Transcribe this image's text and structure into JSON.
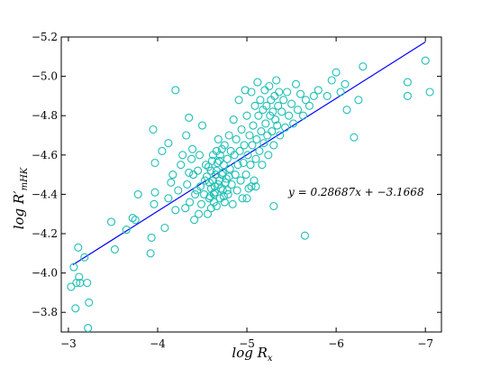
{
  "chart_data": {
    "type": "scatter",
    "title": "",
    "xlabel": "log R_x",
    "ylabel": "log R'_mHK",
    "xlim": [
      -2.92,
      -7.18
    ],
    "ylim": [
      -3.7,
      -5.2
    ],
    "x_ticks": [
      "−3",
      "−4",
      "−5",
      "−6",
      "−7"
    ],
    "y_ticks": [
      "−3.8",
      "−4.0",
      "−4.2",
      "−4.4",
      "−4.6",
      "−4.8",
      "−5.0",
      "−5.2"
    ],
    "x_tick_values": [
      -3,
      -4,
      -5,
      -6,
      -7
    ],
    "y_tick_values": [
      -3.8,
      -4.0,
      -4.2,
      -4.4,
      -4.6,
      -4.8,
      -5.0,
      -5.2
    ],
    "marker_color": "#1fbfb5",
    "fit_color": "#0000ff",
    "fit": {
      "slope": 0.28687,
      "intercept": -3.1668,
      "x_range": [
        -3.05,
        -7.0
      ]
    },
    "annotation": "y = 0.28687x + −3.1668",
    "series": [
      {
        "values": [
          [
            -3.03,
            -3.93
          ],
          [
            -3.09,
            -3.95
          ],
          [
            -3.13,
            -3.95
          ],
          [
            -3.21,
            -3.95
          ],
          [
            -3.06,
            -4.03
          ],
          [
            -3.12,
            -3.98
          ],
          [
            -3.18,
            -4.08
          ],
          [
            -3.11,
            -4.13
          ],
          [
            -3.23,
            -3.85
          ],
          [
            -3.08,
            -3.82
          ],
          [
            -3.22,
            -3.72
          ],
          [
            -3.48,
            -4.26
          ],
          [
            -3.52,
            -4.12
          ],
          [
            -3.65,
            -4.22
          ],
          [
            -3.72,
            -4.28
          ],
          [
            -3.75,
            -4.27
          ],
          [
            -3.78,
            -4.4
          ],
          [
            -3.92,
            -4.1
          ],
          [
            -3.93,
            -4.18
          ],
          [
            -3.96,
            -4.35
          ],
          [
            -3.97,
            -4.41
          ],
          [
            -3.97,
            -4.56
          ],
          [
            -3.95,
            -4.73
          ],
          [
            -4.05,
            -4.62
          ],
          [
            -4.08,
            -4.23
          ],
          [
            -4.12,
            -4.38
          ],
          [
            -4.12,
            -4.66
          ],
          [
            -4.15,
            -4.46
          ],
          [
            -4.17,
            -4.5
          ],
          [
            -4.2,
            -4.32
          ],
          [
            -4.2,
            -4.93
          ],
          [
            -4.23,
            -4.42
          ],
          [
            -4.26,
            -4.55
          ],
          [
            -4.28,
            -4.6
          ],
          [
            -4.32,
            -4.7
          ],
          [
            -4.35,
            -4.79
          ],
          [
            -4.36,
            -4.36
          ],
          [
            -4.38,
            -4.58
          ],
          [
            -4.4,
            -4.5
          ],
          [
            -4.42,
            -4.4
          ],
          [
            -4.45,
            -4.52
          ],
          [
            -4.46,
            -4.3
          ],
          [
            -4.48,
            -4.44
          ],
          [
            -4.31,
            -4.33
          ],
          [
            -4.33,
            -4.45
          ],
          [
            -4.35,
            -4.51
          ],
          [
            -4.39,
            -4.63
          ],
          [
            -4.41,
            -4.27
          ],
          [
            -4.44,
            -4.42
          ],
          [
            -4.47,
            -4.6
          ],
          [
            -4.49,
            -4.35
          ],
          [
            -4.5,
            -4.75
          ],
          [
            -4.52,
            -4.4
          ],
          [
            -4.53,
            -4.47
          ],
          [
            -4.54,
            -4.55
          ],
          [
            -4.56,
            -4.3
          ],
          [
            -4.58,
            -4.38
          ],
          [
            -4.58,
            -4.46
          ],
          [
            -4.6,
            -4.52
          ],
          [
            -4.6,
            -4.33
          ],
          [
            -4.62,
            -4.6
          ],
          [
            -4.63,
            -4.4
          ],
          [
            -4.64,
            -4.44
          ],
          [
            -4.65,
            -4.5
          ],
          [
            -4.66,
            -4.34
          ],
          [
            -4.67,
            -4.56
          ],
          [
            -4.68,
            -4.45
          ],
          [
            -4.68,
            -4.68
          ],
          [
            -4.7,
            -4.38
          ],
          [
            -4.7,
            -4.6
          ],
          [
            -4.72,
            -4.5
          ],
          [
            -4.73,
            -4.42
          ],
          [
            -4.74,
            -4.55
          ],
          [
            -4.75,
            -4.65
          ],
          [
            -4.75,
            -4.36
          ],
          [
            -4.77,
            -4.48
          ],
          [
            -4.78,
            -4.58
          ],
          [
            -4.79,
            -4.4
          ],
          [
            -4.8,
            -4.7
          ],
          [
            -4.81,
            -4.53
          ],
          [
            -4.82,
            -4.62
          ],
          [
            -4.83,
            -4.45
          ],
          [
            -4.84,
            -4.35
          ],
          [
            -4.85,
            -4.78
          ],
          [
            -4.86,
            -4.6
          ],
          [
            -4.87,
            -4.5
          ],
          [
            -4.88,
            -4.68
          ],
          [
            -4.89,
            -4.42
          ],
          [
            -4.9,
            -4.55
          ],
          [
            -4.91,
            -4.88
          ],
          [
            -4.92,
            -4.62
          ],
          [
            -4.93,
            -4.47
          ],
          [
            -4.94,
            -4.73
          ],
          [
            -4.95,
            -4.38
          ],
          [
            -4.96,
            -4.56
          ],
          [
            -4.97,
            -4.65
          ],
          [
            -4.98,
            -4.93
          ],
          [
            -4.99,
            -4.5
          ],
          [
            -5.0,
            -4.8
          ],
          [
            -5.01,
            -4.6
          ],
          [
            -5.02,
            -4.43
          ],
          [
            -5.03,
            -4.7
          ],
          [
            -5.04,
            -4.55
          ],
          [
            -5.05,
            -4.92
          ],
          [
            -5.06,
            -4.65
          ],
          [
            -5.07,
            -4.75
          ],
          [
            -5.08,
            -4.47
          ],
          [
            -5.09,
            -4.85
          ],
          [
            -5.1,
            -4.58
          ],
          [
            -5.11,
            -4.68
          ],
          [
            -5.12,
            -4.97
          ],
          [
            -5.13,
            -4.8
          ],
          [
            -5.14,
            -4.62
          ],
          [
            -5.15,
            -4.88
          ],
          [
            -5.16,
            -4.72
          ],
          [
            -5.17,
            -4.55
          ],
          [
            -5.18,
            -4.83
          ],
          [
            -5.19,
            -4.66
          ],
          [
            -5.2,
            -4.93
          ],
          [
            -5.21,
            -4.76
          ],
          [
            -5.22,
            -4.85
          ],
          [
            -5.23,
            -4.7
          ],
          [
            -5.24,
            -4.6
          ],
          [
            -5.25,
            -4.95
          ],
          [
            -5.26,
            -4.8
          ],
          [
            -5.27,
            -4.88
          ],
          [
            -5.28,
            -4.72
          ],
          [
            -5.29,
            -4.82
          ],
          [
            -5.3,
            -4.65
          ],
          [
            -5.31,
            -4.9
          ],
          [
            -5.32,
            -4.78
          ],
          [
            -5.33,
            -4.98
          ],
          [
            -5.34,
            -4.75
          ],
          [
            -5.35,
            -4.85
          ],
          [
            -5.36,
            -4.92
          ],
          [
            -5.37,
            -4.7
          ],
          [
            -5.39,
            -4.82
          ],
          [
            -5.41,
            -4.88
          ],
          [
            -5.43,
            -4.74
          ],
          [
            -5.45,
            -4.92
          ],
          [
            -5.47,
            -4.8
          ],
          [
            -5.5,
            -4.86
          ],
          [
            -5.52,
            -4.76
          ],
          [
            -5.55,
            -4.96
          ],
          [
            -5.57,
            -4.83
          ],
          [
            -5.6,
            -4.91
          ],
          [
            -5.63,
            -4.8
          ],
          [
            -5.66,
            -4.88
          ],
          [
            -5.7,
            -4.85
          ],
          [
            -5.75,
            -4.9
          ],
          [
            -5.8,
            -4.93
          ],
          [
            -5.9,
            -4.9
          ],
          [
            -5.95,
            -4.98
          ],
          [
            -6.0,
            -5.02
          ],
          [
            -6.05,
            -4.92
          ],
          [
            -6.1,
            -4.96
          ],
          [
            -6.12,
            -4.83
          ],
          [
            -6.25,
            -4.88
          ],
          [
            -6.3,
            -5.05
          ],
          [
            -5.05,
            -4.44
          ],
          [
            -5.1,
            -4.44
          ],
          [
            -5.0,
            -4.38
          ],
          [
            -5.3,
            -4.34
          ],
          [
            -5.65,
            -4.19
          ],
          [
            -6.2,
            -4.69
          ],
          [
            -6.8,
            -4.97
          ],
          [
            -6.8,
            -4.9
          ],
          [
            -7.0,
            -5.08
          ],
          [
            -7.05,
            -4.92
          ],
          [
            -4.6,
            -4.43
          ],
          [
            -4.62,
            -4.47
          ],
          [
            -4.64,
            -4.41
          ],
          [
            -4.66,
            -4.52
          ],
          [
            -4.69,
            -4.47
          ],
          [
            -4.71,
            -4.43
          ],
          [
            -4.73,
            -4.51
          ],
          [
            -4.76,
            -4.46
          ],
          [
            -4.78,
            -4.42
          ],
          [
            -4.8,
            -4.49
          ],
          [
            -4.55,
            -4.49
          ],
          [
            -4.57,
            -4.54
          ],
          [
            -4.59,
            -4.39
          ],
          [
            -4.61,
            -4.57
          ],
          [
            -4.63,
            -4.36
          ],
          [
            -4.66,
            -4.62
          ],
          [
            -4.69,
            -4.57
          ],
          [
            -4.72,
            -4.63
          ],
          [
            -4.74,
            -4.39
          ]
        ]
      }
    ]
  }
}
